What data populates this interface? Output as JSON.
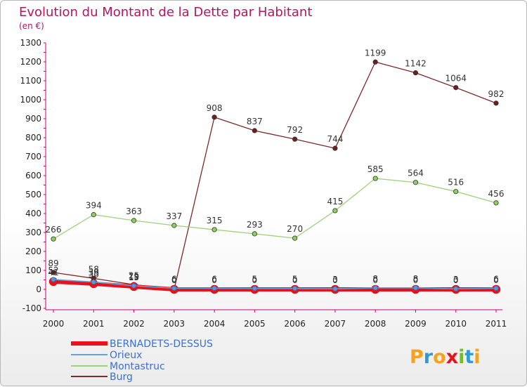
{
  "chart_data": {
    "type": "line",
    "title": "Evolution du Montant de la Dette par Habitant",
    "subtitle": "(en €)",
    "x": [
      "2000",
      "2001",
      "2002",
      "2003",
      "2004",
      "2005",
      "2006",
      "2007",
      "2008",
      "2009",
      "2010",
      "2011"
    ],
    "yticks": [
      -100,
      0,
      100,
      200,
      300,
      400,
      500,
      600,
      700,
      800,
      900,
      1000,
      1100,
      1200,
      1300
    ],
    "ylim": [
      -100,
      1300
    ],
    "grid": false,
    "legend_position": "bottom-left",
    "series": [
      {
        "name": "BERNADETS-DESSUS",
        "color": "#e8121c",
        "values": [
          41,
          30,
          15,
          0,
          0,
          0,
          0,
          0,
          0,
          0,
          0,
          0
        ]
      },
      {
        "name": "Orieux",
        "color": "#6a9ed6",
        "values": [
          52,
          39,
          19,
          6,
          6,
          5,
          5,
          3,
          8,
          8,
          3,
          6
        ]
      },
      {
        "name": "Montastruc",
        "color": "#9dd27a",
        "values": [
          266,
          394,
          363,
          337,
          315,
          293,
          270,
          415,
          585,
          564,
          516,
          456
        ]
      },
      {
        "name": "Burg",
        "color": "#7c2a2a",
        "values": [
          89,
          58,
          25,
          0,
          908,
          837,
          792,
          744,
          1199,
          1142,
          1064,
          982
        ]
      }
    ],
    "data_labels": {
      "Orieux": [
        "52",
        "39",
        "19",
        "6",
        "6",
        "5",
        "5",
        "3",
        "8",
        "8",
        "3",
        "6"
      ],
      "BERNADETS-DESSUS": [
        "41",
        "30",
        "15",
        "0",
        "0",
        "0",
        "0",
        "0",
        "0",
        "0",
        "0",
        "0"
      ]
    }
  },
  "logo": {
    "text": "Proxiti"
  },
  "colors": {
    "title": "#b5165f",
    "axis": "#d0006f",
    "legend_text": "#3b6fd4"
  }
}
